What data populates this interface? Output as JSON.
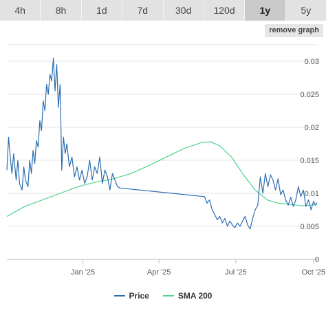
{
  "range_tabs": [
    "4h",
    "8h",
    "1d",
    "7d",
    "30d",
    "120d",
    "1y",
    "5y"
  ],
  "active_tab": "1y",
  "remove_graph_label": "remove graph",
  "colors": {
    "price": "#2b6cb0",
    "sma": "#4cd28a",
    "grid": "#e6e6e6",
    "axis": "#bbbbbb",
    "active_tab": "#c9c9c9"
  },
  "chart_data": {
    "type": "line",
    "x_ticks": [
      "Jan '25",
      "Apr '25",
      "Jul '25",
      "Oct '25"
    ],
    "x_tick_dates": [
      "2025-01-01",
      "2025-04-01",
      "2025-07-01",
      "2025-10-01"
    ],
    "xlim": [
      "2024-10-03",
      "2025-10-06"
    ],
    "y_ticks": [
      "0",
      "0.005",
      "0.01",
      "0.015",
      "0.02",
      "0.025",
      "0.03"
    ],
    "ylim": [
      0,
      0.0325
    ],
    "legend": [
      "Price",
      "SMA 200"
    ],
    "legend_position": "bottom",
    "series": [
      {
        "name": "Price",
        "color": "#2b6cb0",
        "x": [
          "2024-10-03",
          "2024-10-05",
          "2024-10-07",
          "2024-10-09",
          "2024-10-11",
          "2024-10-14",
          "2024-10-16",
          "2024-10-18",
          "2024-10-21",
          "2024-10-23",
          "2024-10-25",
          "2024-10-28",
          "2024-10-30",
          "2024-11-01",
          "2024-11-03",
          "2024-11-05",
          "2024-11-07",
          "2024-11-09",
          "2024-11-11",
          "2024-11-13",
          "2024-11-15",
          "2024-11-17",
          "2024-11-19",
          "2024-11-21",
          "2024-11-23",
          "2024-11-25",
          "2024-11-27",
          "2024-11-29",
          "2024-12-01",
          "2024-12-03",
          "2024-12-05",
          "2024-12-07",
          "2024-12-09",
          "2024-12-11",
          "2024-12-13",
          "2024-12-16",
          "2024-12-19",
          "2024-12-22",
          "2024-12-25",
          "2024-12-28",
          "2024-12-31",
          "2025-01-03",
          "2025-01-06",
          "2025-01-09",
          "2025-01-12",
          "2025-01-15",
          "2025-01-18",
          "2025-01-21",
          "2025-01-24",
          "2025-01-27",
          "2025-01-30",
          "2025-02-02",
          "2025-02-05",
          "2025-02-08",
          "2025-02-11",
          "2025-02-14",
          "2025-05-25",
          "2025-05-28",
          "2025-05-31",
          "2025-06-03",
          "2025-06-06",
          "2025-06-09",
          "2025-06-12",
          "2025-06-15",
          "2025-06-18",
          "2025-06-21",
          "2025-06-24",
          "2025-06-27",
          "2025-06-30",
          "2025-07-03",
          "2025-07-06",
          "2025-07-09",
          "2025-07-12",
          "2025-07-15",
          "2025-07-18",
          "2025-07-21",
          "2025-07-24",
          "2025-07-27",
          "2025-07-30",
          "2025-08-02",
          "2025-08-05",
          "2025-08-08",
          "2025-08-11",
          "2025-08-14",
          "2025-08-17",
          "2025-08-20",
          "2025-08-23",
          "2025-08-26",
          "2025-08-29",
          "2025-09-01",
          "2025-09-04",
          "2025-09-07",
          "2025-09-10",
          "2025-09-13",
          "2025-09-16",
          "2025-09-19",
          "2025-09-22",
          "2025-09-25",
          "2025-09-28",
          "2025-10-01",
          "2025-10-03",
          "2025-10-05"
        ],
        "y": [
          0.0135,
          0.0185,
          0.0155,
          0.013,
          0.016,
          0.012,
          0.015,
          0.0115,
          0.0105,
          0.014,
          0.012,
          0.011,
          0.015,
          0.013,
          0.0165,
          0.0145,
          0.018,
          0.017,
          0.021,
          0.0195,
          0.024,
          0.0225,
          0.0265,
          0.025,
          0.028,
          0.027,
          0.0305,
          0.0255,
          0.0295,
          0.023,
          0.0265,
          0.0135,
          0.0185,
          0.016,
          0.0175,
          0.014,
          0.0155,
          0.0125,
          0.014,
          0.012,
          0.0135,
          0.0115,
          0.0125,
          0.015,
          0.012,
          0.014,
          0.013,
          0.0155,
          0.0115,
          0.0135,
          0.0125,
          0.0105,
          0.013,
          0.012,
          0.011,
          0.0108,
          0.0095,
          0.0085,
          0.009,
          0.0075,
          0.0068,
          0.006,
          0.0065,
          0.0055,
          0.0062,
          0.005,
          0.0058,
          0.0052,
          0.0048,
          0.0055,
          0.005,
          0.0058,
          0.0065,
          0.0052,
          0.0046,
          0.0062,
          0.0075,
          0.0082,
          0.0125,
          0.01,
          0.013,
          0.011,
          0.0128,
          0.012,
          0.0105,
          0.0122,
          0.0098,
          0.0105,
          0.009,
          0.0082,
          0.0094,
          0.008,
          0.009,
          0.011,
          0.0095,
          0.0105,
          0.008,
          0.009,
          0.0075,
          0.0088,
          0.0082,
          0.0086
        ]
      },
      {
        "name": "SMA 200",
        "color": "#4cd28a",
        "x": [
          "2024-10-03",
          "2024-10-24",
          "2024-11-14",
          "2024-12-05",
          "2024-12-26",
          "2025-01-16",
          "2025-02-06",
          "2025-02-27",
          "2025-03-20",
          "2025-04-10",
          "2025-05-01",
          "2025-05-22",
          "2025-06-01",
          "2025-06-12",
          "2025-06-26",
          "2025-07-10",
          "2025-07-24",
          "2025-08-07",
          "2025-08-21",
          "2025-09-04",
          "2025-09-18",
          "2025-10-05"
        ],
        "y": [
          0.0065,
          0.008,
          0.009,
          0.01,
          0.011,
          0.0117,
          0.0122,
          0.013,
          0.0142,
          0.0155,
          0.0168,
          0.0177,
          0.0178,
          0.0172,
          0.0155,
          0.0128,
          0.0105,
          0.009,
          0.0085,
          0.0083,
          0.0081,
          0.0083
        ]
      }
    ]
  }
}
